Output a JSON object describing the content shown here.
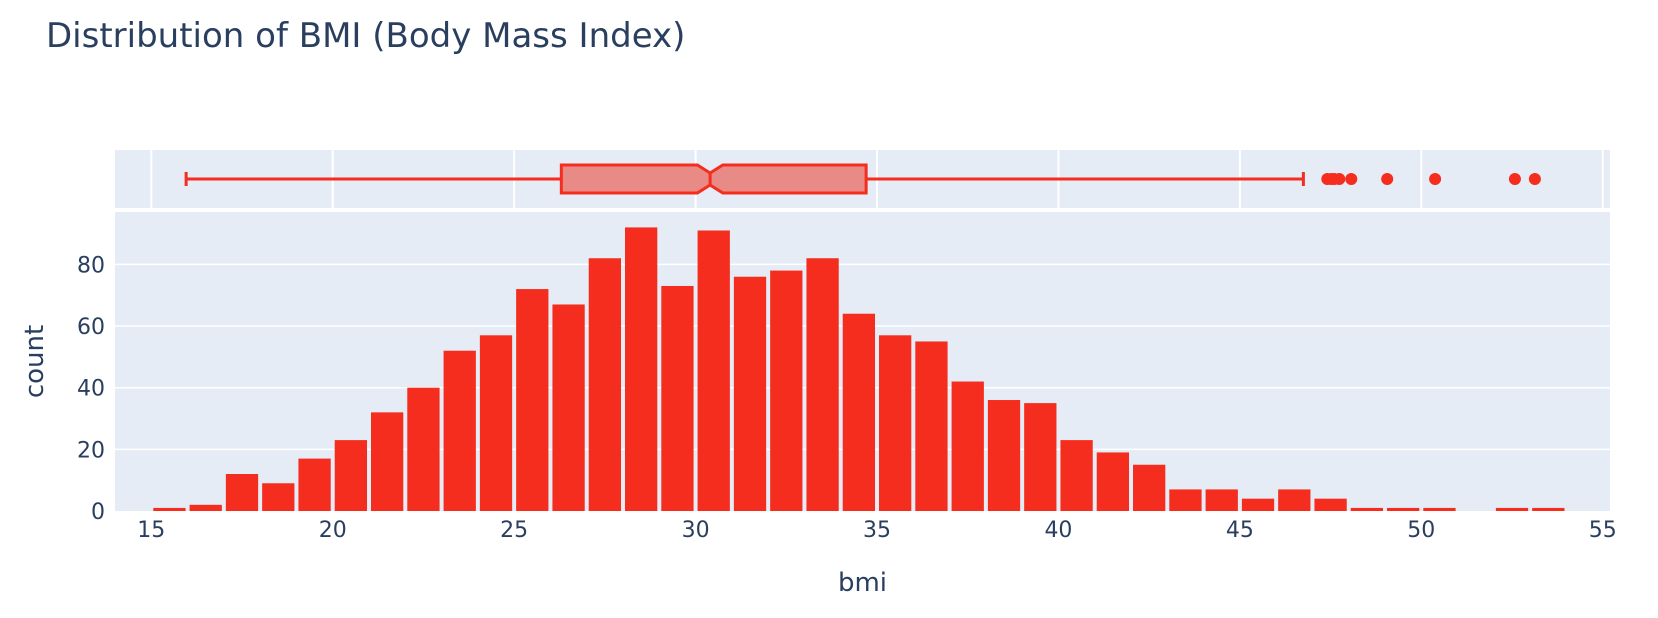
{
  "chart_data": {
    "type": "bar",
    "title": "Distribution of BMI (Body Mass Index)",
    "xlabel": "bmi",
    "ylabel": "count",
    "xlim": [
      14,
      55.2
    ],
    "ylim": [
      0,
      97
    ],
    "x_ticks": [
      15,
      20,
      25,
      30,
      35,
      40,
      45,
      50,
      55
    ],
    "y_ticks": [
      0,
      20,
      40,
      60,
      80
    ],
    "grid": true,
    "legend": "none",
    "colors": {
      "bar": "#f52d1e",
      "box_fill": "#e88a86",
      "box_line": "#f52d1e",
      "plot_bg": "#e5ecf6",
      "grid": "#ffffff",
      "text": "#2a3f5f"
    },
    "histogram": {
      "bin_start": 15,
      "bin_size": 1,
      "counts": [
        1,
        2,
        12,
        9,
        17,
        23,
        32,
        40,
        52,
        57,
        72,
        67,
        82,
        92,
        73,
        91,
        76,
        78,
        82,
        64,
        57,
        55,
        42,
        36,
        35,
        23,
        19,
        15,
        7,
        7,
        4,
        7,
        4,
        1,
        1,
        1,
        0,
        1,
        1
      ]
    },
    "box_plot": {
      "orientation": "horizontal",
      "notched": true,
      "lower_fence": 15.96,
      "q1": 26.3,
      "median": 30.4,
      "q3": 34.7,
      "upper_fence": 46.75,
      "notch_low": 30.05,
      "notch_high": 30.75,
      "outliers": [
        47.41,
        47.52,
        47.6,
        47.74,
        48.07,
        49.06,
        50.38,
        52.58,
        53.13
      ]
    }
  }
}
